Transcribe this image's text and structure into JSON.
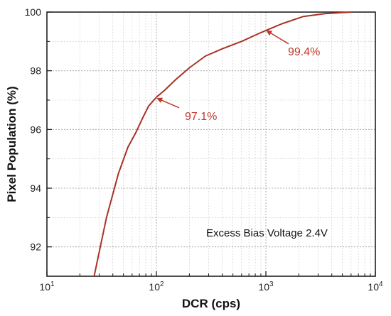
{
  "chart_data": {
    "type": "line",
    "title": "",
    "xlabel": "DCR (cps)",
    "ylabel": "Pixel Population (%)",
    "xscale": "log",
    "xlim": [
      10,
      10000
    ],
    "ylim": [
      91,
      100
    ],
    "x_ticks": [
      {
        "value": 10,
        "base": "10",
        "exp": "1"
      },
      {
        "value": 100,
        "base": "10",
        "exp": "2"
      },
      {
        "value": 1000,
        "base": "10",
        "exp": "3"
      },
      {
        "value": 10000,
        "base": "10",
        "exp": "4"
      }
    ],
    "y_ticks": [
      92,
      94,
      96,
      98,
      100
    ],
    "grid": true,
    "line_color": "#a93226",
    "annotation_color": "#c0392b",
    "series": [
      {
        "x": [
          27,
          35,
          45,
          55,
          65,
          75,
          85,
          100,
          120,
          150,
          200,
          280,
          400,
          600,
          900,
          1400,
          2200,
          3500,
          6000
        ],
        "y": [
          91.0,
          93.0,
          94.5,
          95.4,
          95.9,
          96.4,
          96.8,
          97.1,
          97.35,
          97.7,
          98.1,
          98.5,
          98.75,
          99.0,
          99.3,
          99.6,
          99.85,
          99.95,
          100.0
        ]
      }
    ],
    "annotations": [
      {
        "text": "99.4%",
        "x": 1000,
        "y": 99.4
      },
      {
        "text": "97.1%",
        "x": 100,
        "y": 97.1
      }
    ],
    "inset_text": "Excess Bias Voltage 2.4V"
  }
}
